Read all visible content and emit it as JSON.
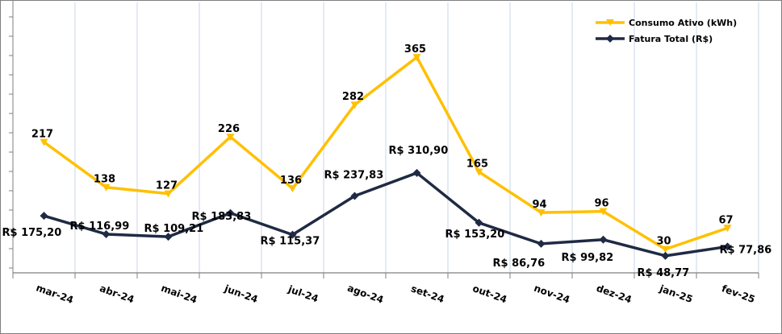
{
  "chart_data": {
    "type": "line",
    "title": "",
    "xlabel": "",
    "ylabel": "",
    "grid": "vertical",
    "legend_position": "top-right",
    "categories": [
      "mar-24",
      "abr-24",
      "mai-24",
      "jun-24",
      "jul-24",
      "ago-24",
      "set-24",
      "out-24",
      "nov-24",
      "dez-24",
      "jan-25",
      "fev-25"
    ],
    "series": [
      {
        "name": "Consumo Ativo (kWh)",
        "color": "#FFC000",
        "marker": "triangle-down",
        "axis": "primary",
        "values": [
          217,
          138,
          127,
          226,
          136,
          282,
          365,
          165,
          94,
          96,
          30,
          67
        ],
        "labels": [
          "217",
          "138",
          "127",
          "226",
          "136",
          "282",
          "365",
          "165",
          "94",
          "96",
          "30",
          "67"
        ]
      },
      {
        "name": "Fatura Total (R$)",
        "color": "#1F2A44",
        "marker": "diamond",
        "axis": "secondary",
        "values": [
          175.2,
          116.99,
          109.21,
          183.83,
          115.37,
          237.83,
          310.9,
          153.2,
          86.76,
          99.82,
          48.77,
          77.86
        ],
        "labels": [
          "R$ 175,20",
          "R$ 116,99",
          "R$ 109,21",
          "R$ 183,83",
          "R$ 115,37",
          "R$ 237,83",
          "R$ 310,90",
          "R$ 153,20",
          "R$ 86,76",
          "R$ 99,82",
          "R$ 48,77",
          "R$ 77,86"
        ]
      }
    ]
  }
}
